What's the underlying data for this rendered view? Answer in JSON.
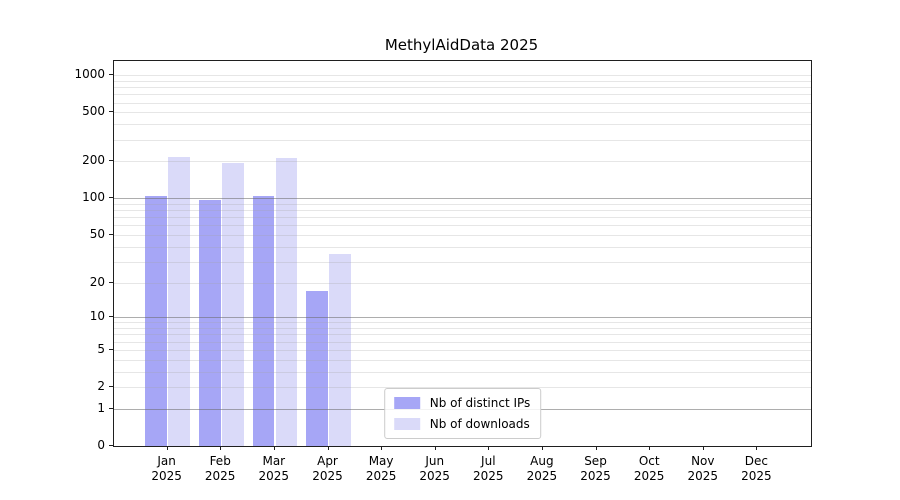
{
  "figure": {
    "background": "#ffffff"
  },
  "chart_data": {
    "type": "bar",
    "title": "MethylAidData 2025",
    "categories": [
      "Jan",
      "Feb",
      "Mar",
      "Apr",
      "May",
      "Jun",
      "Jul",
      "Aug",
      "Sep",
      "Oct",
      "Nov",
      "Dec"
    ],
    "x_year": "2025",
    "series": [
      {
        "name": "Nb of distinct IPs",
        "color": "#a6a6f6",
        "values": [
          104,
          96,
          105,
          17,
          null,
          null,
          null,
          null,
          null,
          null,
          null,
          null
        ]
      },
      {
        "name": "Nb of downloads",
        "color": "#dadaf9",
        "values": [
          218,
          192,
          212,
          35,
          null,
          null,
          null,
          null,
          null,
          null,
          null,
          null
        ]
      }
    ],
    "y_axis": {
      "scale": "log1p",
      "min": 0,
      "max": 1300,
      "ticks": [
        0,
        1,
        2,
        5,
        10,
        20,
        50,
        100,
        200,
        500,
        1000
      ],
      "grid_major": [
        1,
        10,
        100
      ],
      "grid_minor": [
        2,
        3,
        4,
        5,
        6,
        7,
        8,
        9,
        20,
        30,
        40,
        50,
        60,
        70,
        80,
        90,
        200,
        300,
        400,
        500,
        600,
        700,
        800,
        900,
        1000
      ]
    },
    "legend": {
      "position": "lower center",
      "entries": [
        "Nb of distinct IPs",
        "Nb of downloads"
      ]
    },
    "grid": true
  }
}
